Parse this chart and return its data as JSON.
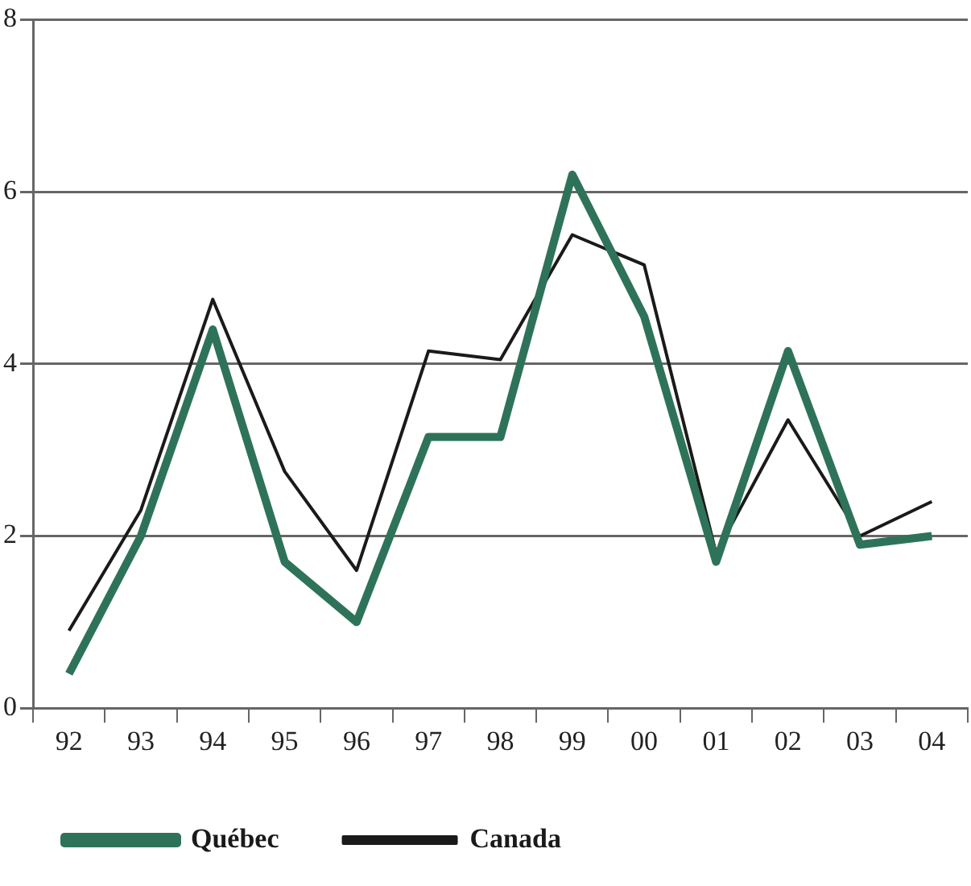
{
  "chart_data": {
    "type": "line",
    "categories": [
      "92",
      "93",
      "94",
      "95",
      "96",
      "97",
      "98",
      "99",
      "00",
      "01",
      "02",
      "03",
      "04"
    ],
    "series": [
      {
        "name": "Québec",
        "color": "#2e7359",
        "values": [
          0.4,
          2.0,
          4.4,
          1.7,
          1.0,
          3.15,
          3.15,
          6.2,
          4.55,
          1.7,
          4.15,
          1.9,
          2.0
        ]
      },
      {
        "name": "Canada",
        "color": "#1a1a1a",
        "values": [
          0.9,
          2.3,
          4.75,
          2.75,
          1.6,
          4.15,
          4.05,
          5.5,
          5.15,
          1.8,
          3.35,
          2.0,
          2.4
        ]
      }
    ],
    "ylim": [
      0,
      8
    ],
    "yticks": [
      0,
      2,
      4,
      6,
      8
    ],
    "grid": "y",
    "legend": "bottom",
    "marker": "none",
    "line_style": "solid"
  }
}
